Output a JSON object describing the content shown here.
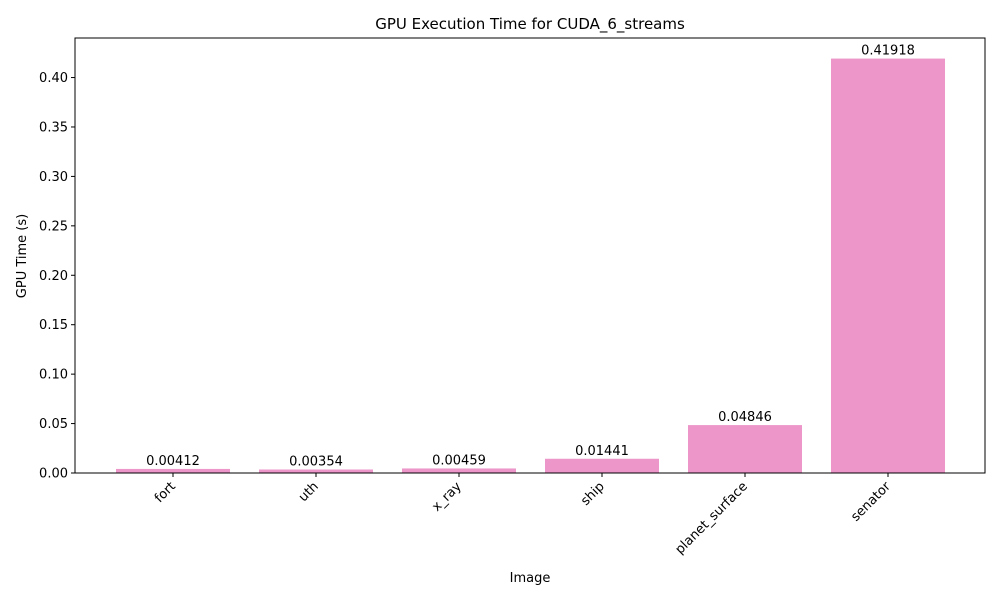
{
  "chart_data": {
    "type": "bar",
    "title": "GPU Execution Time for CUDA_6_streams",
    "xlabel": "Image",
    "ylabel": "GPU Time (s)",
    "categories": [
      "fort",
      "uth",
      "x_ray",
      "ship",
      "planet_surface",
      "senator"
    ],
    "values": [
      0.00412,
      0.00354,
      0.00459,
      0.01441,
      0.04846,
      0.41918
    ],
    "value_labels": [
      "0.00412",
      "0.00354",
      "0.00459",
      "0.01441",
      "0.04846",
      "0.41918"
    ],
    "ylim": [
      0,
      0.44
    ],
    "yticks": [
      0.0,
      0.05,
      0.1,
      0.15,
      0.2,
      0.25,
      0.3,
      0.35,
      0.4
    ],
    "ytick_labels": [
      "0.00",
      "0.05",
      "0.10",
      "0.15",
      "0.20",
      "0.25",
      "0.30",
      "0.35",
      "0.40"
    ],
    "bar_color": "#ec96ca",
    "grid": false,
    "legend": "none"
  }
}
